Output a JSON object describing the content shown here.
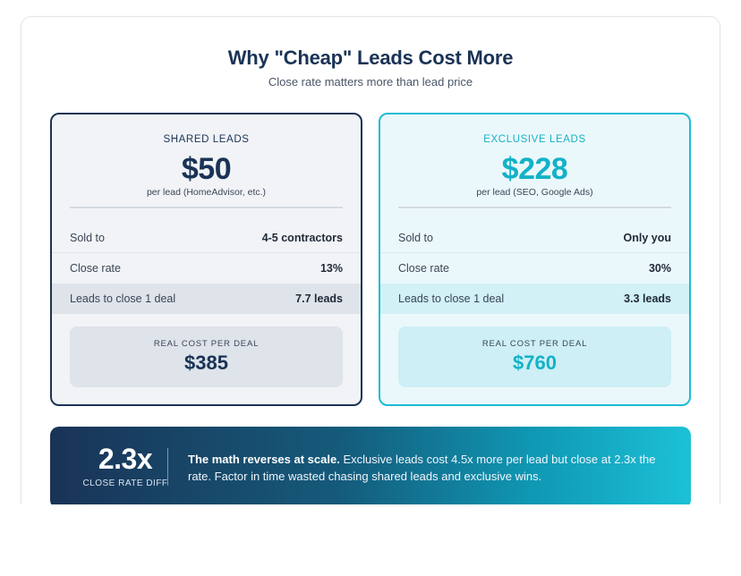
{
  "header": {
    "title": "Why \"Cheap\" Leads Cost More",
    "subtitle": "Close rate matters more than lead price"
  },
  "plans": [
    {
      "label": "SHARED LEADS",
      "price": "$50",
      "price_note": "per lead (HomeAdvisor, etc.)",
      "rows": [
        {
          "label": "Sold to",
          "value": "4-5 contractors"
        },
        {
          "label": "Close rate",
          "value": "13%"
        },
        {
          "label": "Leads to close 1 deal",
          "value": "7.7 leads"
        }
      ],
      "real_cost_label": "REAL COST PER DEAL",
      "real_cost_value": "$385"
    },
    {
      "label": "EXCLUSIVE LEADS",
      "price": "$228",
      "price_note": "per lead (SEO, Google Ads)",
      "rows": [
        {
          "label": "Sold to",
          "value": "Only you"
        },
        {
          "label": "Close rate",
          "value": "30%"
        },
        {
          "label": "Leads to close 1 deal",
          "value": "3.3 leads"
        }
      ],
      "real_cost_label": "REAL COST PER DEAL",
      "real_cost_value": "$760"
    }
  ],
  "banner": {
    "stat_value": "2.3x",
    "stat_label": "CLOSE RATE DIFF",
    "text_bold": "The math reverses at scale.",
    "text_rest": " Exclusive leads cost 4.5x more per lead but close at 2.3x the rate. Factor in time wasted chasing shared leads and exclusive wins."
  },
  "colors": {
    "navy": "#1a3356",
    "teal": "#13b2c8"
  }
}
